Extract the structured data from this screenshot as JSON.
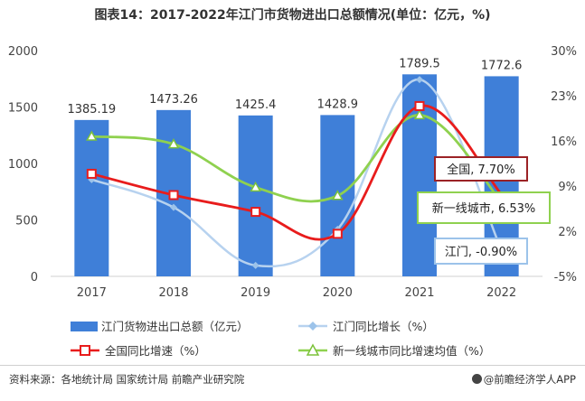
{
  "title": "图表14：2017-2022年江门市货物进出口总额情况(单位：亿元，%)",
  "source": "资料来源：各地统计局 国家统计局 前瞻产业研究院",
  "brand": "@前瞻经济学人APP",
  "colors": {
    "bar": "#3f7fd8",
    "jiangmen_growth": "#b7d2ef",
    "national_growth": "#e81c1c",
    "first_tier_growth": "#8fd14f",
    "callout_national_border": "#9b2226",
    "callout_first_tier_border": "#8fd14f",
    "callout_jiangmen_border": "#9cc3ea"
  },
  "callouts": {
    "national": "全国, 7.70%",
    "first_tier": "新一线城市, 6.53%",
    "jiangmen": "江门, -0.90%"
  },
  "chart_data": {
    "type": "bar",
    "categories": [
      "2017",
      "2018",
      "2019",
      "2020",
      "2021",
      "2022"
    ],
    "left_axis": {
      "ylim": [
        0,
        2000
      ],
      "ticks": [
        "0",
        "500",
        "1000",
        "1500",
        "2000"
      ]
    },
    "right_axis": {
      "ylim": [
        -5,
        30
      ],
      "ticks": [
        "-5%",
        "2%",
        "9%",
        "16%",
        "23%",
        "30%"
      ]
    },
    "series": [
      {
        "name": "江门货物进出口总额（亿元）",
        "kind": "bar",
        "axis": "left",
        "values": [
          1385.19,
          1473.26,
          1425.4,
          1428.9,
          1789.5,
          1772.6
        ],
        "labels": [
          "1385.19",
          "1473.26",
          "1425.4",
          "1428.9",
          "1789.5",
          "1772.6"
        ]
      },
      {
        "name": "江门同比增长（%）",
        "kind": "line",
        "axis": "right",
        "marker": "diamond",
        "values": [
          10.0,
          5.7,
          -3.3,
          2.3,
          25.5,
          -0.9
        ]
      },
      {
        "name": "全国同比增速（%）",
        "kind": "line",
        "axis": "right",
        "marker": "square",
        "values": [
          10.9,
          7.6,
          5.0,
          1.6,
          21.4,
          7.7
        ]
      },
      {
        "name": "新一线城市同比增速均值（%）",
        "kind": "line",
        "axis": "right",
        "marker": "triangle",
        "values": [
          16.7,
          15.5,
          8.8,
          7.5,
          20.0,
          6.53
        ]
      }
    ]
  }
}
